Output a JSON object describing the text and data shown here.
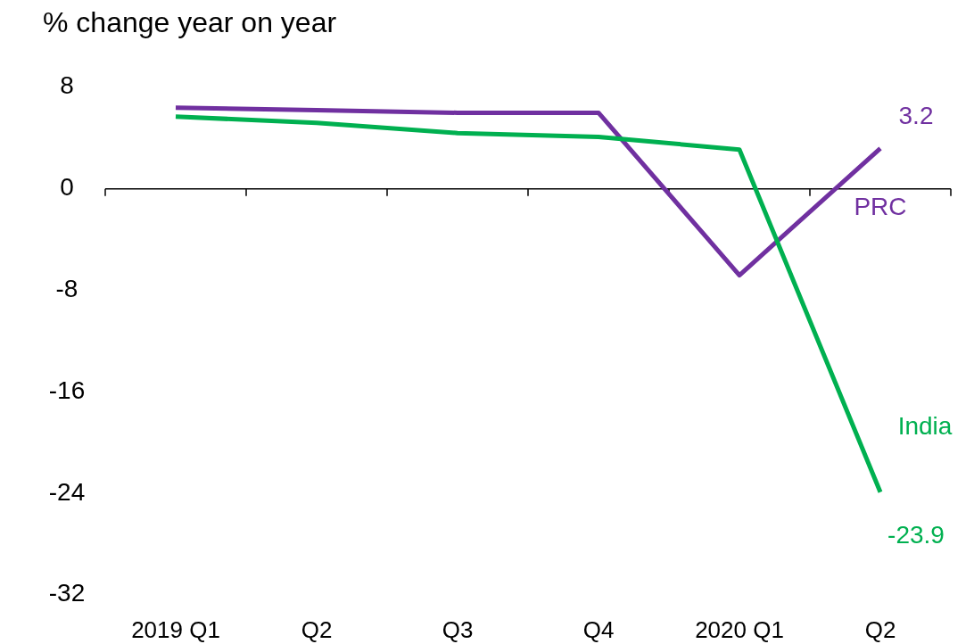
{
  "chart_data": {
    "type": "line",
    "ylabel": "% change year on year",
    "categories": [
      "2019 Q1",
      "Q2",
      "Q3",
      "Q4",
      "2020 Q1",
      "Q2"
    ],
    "ylim": [
      -32,
      8
    ],
    "yticks": [
      -32,
      -24,
      -16,
      -8,
      0,
      8
    ],
    "series": [
      {
        "name": "PRC",
        "color": "#7030a0",
        "values": [
          6.4,
          6.2,
          6.0,
          6.0,
          -6.8,
          3.2
        ],
        "value_labels": [
          null,
          null,
          null,
          null,
          null,
          "3.2"
        ]
      },
      {
        "name": "India",
        "color": "#00b050",
        "values": [
          5.7,
          5.2,
          4.4,
          4.1,
          3.1,
          -23.9
        ],
        "value_labels": [
          null,
          null,
          null,
          null,
          null,
          "-23.9"
        ]
      }
    ]
  }
}
